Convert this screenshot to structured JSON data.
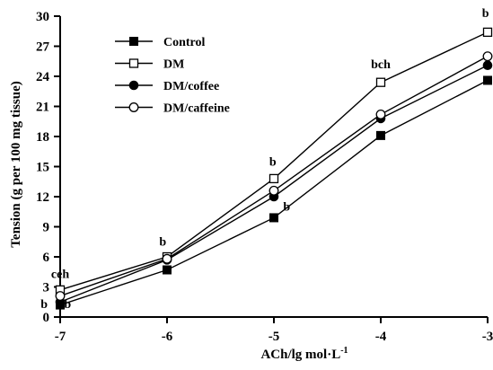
{
  "chart_data": {
    "type": "line",
    "xlabel": "ACh/lg mol·L",
    "xlabel_superscript": "-1",
    "ylabel": "Tension (g per 100 mg tissue)",
    "xlim": [
      -7,
      -3
    ],
    "ylim": [
      0,
      30
    ],
    "x": [
      -7,
      -6,
      -5,
      -4,
      -3
    ],
    "x_tick_labels": [
      "-7",
      "-6",
      "-5",
      "-4",
      "-3"
    ],
    "y_ticks": [
      0,
      3,
      6,
      9,
      12,
      15,
      18,
      21,
      24,
      27,
      30
    ],
    "y_tick_labels": [
      "0",
      "3",
      "6",
      "9",
      "12",
      "15",
      "18",
      "21",
      "24",
      "27",
      "30"
    ],
    "grid": false,
    "legend_position": "top-left",
    "series": [
      {
        "name": "Control",
        "marker": "filled-square",
        "values": [
          1.2,
          4.7,
          9.9,
          18.1,
          23.6
        ]
      },
      {
        "name": "DM",
        "marker": "open-square",
        "values": [
          2.7,
          6.0,
          13.8,
          23.4,
          28.4
        ]
      },
      {
        "name": "DM/coffee",
        "marker": "filled-circle",
        "values": [
          1.5,
          5.7,
          12.0,
          19.8,
          25.1
        ]
      },
      {
        "name": "DM/caffeine",
        "marker": "open-circle",
        "values": [
          2.1,
          5.8,
          12.6,
          20.2,
          26.0
        ]
      }
    ],
    "annotations": [
      {
        "text": "ceh",
        "x": -7,
        "y": 3.9
      },
      {
        "text": "b",
        "x": -7.15,
        "y": 0.9
      },
      {
        "text": "b",
        "x": -6.93,
        "y": 0.9
      },
      {
        "text": "b",
        "x": -6.04,
        "y": 7.1
      },
      {
        "text": "b",
        "x": -5.01,
        "y": 15.1
      },
      {
        "text": "b",
        "x": -4.88,
        "y": 10.6
      },
      {
        "text": "bch",
        "x": -4.0,
        "y": 24.8
      },
      {
        "text": "b",
        "x": -3.02,
        "y": 29.9
      }
    ]
  }
}
